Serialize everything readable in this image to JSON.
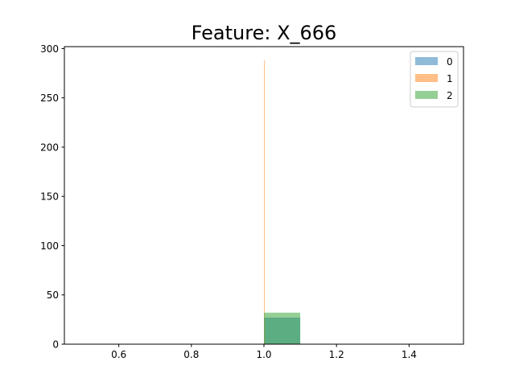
{
  "chart_data": {
    "type": "bar",
    "title": "Feature: X_666",
    "xlabel": "",
    "ylabel": "",
    "xlim": [
      0.45,
      1.55
    ],
    "ylim": [
      0,
      302
    ],
    "x_ticks": [
      0.6,
      0.8,
      1.0,
      1.2,
      1.4
    ],
    "x_tick_labels": [
      "0.6",
      "0.8",
      "1.0",
      "1.2",
      "1.4"
    ],
    "y_ticks": [
      0,
      50,
      100,
      150,
      200,
      250,
      300
    ],
    "y_tick_labels": [
      "0",
      "50",
      "100",
      "150",
      "200",
      "250",
      "300"
    ],
    "grid": false,
    "legend_position": "top-right",
    "series": [
      {
        "name": "0",
        "color": "#1f77b4",
        "bins": [
          {
            "x0": 1.0,
            "x1": 1.1,
            "value": 27
          }
        ]
      },
      {
        "name": "1",
        "color": "#ff7f0e",
        "bins": [
          {
            "x0": 1.0,
            "x1": 1.002,
            "value": 288
          }
        ]
      },
      {
        "name": "2",
        "color": "#2ca02c",
        "bins": [
          {
            "x0": 1.0,
            "x1": 1.1,
            "value": 32
          }
        ]
      }
    ],
    "bar_opacity": 0.5
  }
}
